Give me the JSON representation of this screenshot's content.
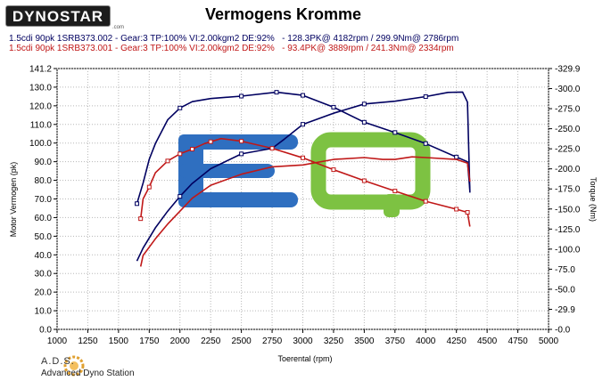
{
  "header": {
    "logo_text": "DYNOSTAR",
    "logo_suffix": ".com",
    "title": "Vermogens Kromme"
  },
  "runs": [
    {
      "text": "1.5cdi 90pk 1SRB373.002 - Gear:3 TP:100% VI:2.00kgm2 DE:92%   - 128.3PK@ 4182rpm / 299.9Nm@ 2786rpm",
      "color": "#000060"
    },
    {
      "text": "1.5cdi 90pk 1SRB373.001 - Gear:3 TP:100% VI:2.00kgm2 DE:92%   - 93.4PK@ 3889rpm / 241.3Nm@ 2334rpm",
      "color": "#c01818"
    }
  ],
  "footer": {
    "name": "A.D.S.",
    "subtitle": "Advanced Dyno Station"
  },
  "watermark": {
    "left_letter": "E",
    "right_letter": "Q",
    "left_color": "#2f6fc0",
    "right_color": "#7dc242"
  },
  "chart_data": {
    "type": "line",
    "title": "Vermogens Kromme",
    "xlabel": "Toerental (rpm)",
    "ylabel": "Motor Vermogen (pk)",
    "y2label": "Torque (Nm)",
    "xlim": [
      1000,
      5000
    ],
    "ylim": [
      0.0,
      141.2
    ],
    "y2lim": [
      0.0,
      329.9
    ],
    "x_ticks": [
      1000,
      1250,
      1500,
      1750,
      2000,
      2250,
      2500,
      2750,
      3000,
      3250,
      3500,
      3750,
      4000,
      4250,
      4500,
      4750,
      5000
    ],
    "y_ticks": [
      "0.0",
      "10.0",
      "20.0",
      "30.0",
      "40.0",
      "50.0",
      "60.0",
      "70.0",
      "80.0",
      "90.0",
      "100.0",
      "110.0",
      "120.0",
      "130.0",
      "141.2"
    ],
    "y2_ticks": [
      "-0.0",
      "-29.9",
      "-50.0",
      "-75.0",
      "-100.0",
      "-125.0",
      "-150.0",
      "-175.0",
      "-200.0",
      "-225.0",
      "-250.0",
      "-275.0",
      "-300.0",
      "-329.9"
    ],
    "grid": true,
    "series": [
      {
        "name": "1.5cdi 90pk 1SRB373.002",
        "kind": "power",
        "axis": "left",
        "color": "#000060",
        "x": [
          1650,
          1700,
          1800,
          1900,
          2000,
          2100,
          2250,
          2500,
          2750,
          2850,
          3000,
          3250,
          3500,
          3750,
          4000,
          4182,
          4300,
          4340,
          4360
        ],
        "y": [
          37,
          44,
          55,
          64,
          72,
          79,
          87,
          95,
          98,
          103,
          111,
          117,
          122,
          123.5,
          126,
          128.3,
          128.5,
          123,
          74
        ],
        "markers_x": [
          2000,
          2500,
          3000,
          3500,
          4000
        ]
      },
      {
        "name": "1.5cdi 90pk 1SRB373.002",
        "kind": "torque",
        "axis": "right",
        "color": "#000060",
        "x": [
          1650,
          1700,
          1750,
          1800,
          1900,
          2000,
          2100,
          2250,
          2500,
          2786,
          3000,
          3250,
          3500,
          3750,
          4000,
          4250,
          4340,
          4360
        ],
        "y": [
          159,
          185,
          215,
          235,
          265,
          280,
          288,
          292,
          295,
          299.9,
          296,
          281,
          262,
          249,
          235,
          218,
          212,
          176
        ],
        "markers_x": [
          1650,
          2000,
          2500,
          2786,
          3000,
          3250,
          3500,
          3750,
          4000,
          4250
        ]
      },
      {
        "name": "1.5cdi 90pk 1SRB373.001",
        "kind": "power",
        "axis": "left",
        "color": "#c01818",
        "x": [
          1680,
          1700,
          1800,
          1900,
          2000,
          2100,
          2250,
          2500,
          2750,
          3000,
          3250,
          3500,
          3650,
          3750,
          3889,
          4000,
          4250,
          4340,
          4360
        ],
        "y": [
          34,
          40,
          49,
          57,
          64,
          71,
          78,
          84,
          88,
          89,
          92,
          93,
          92,
          92,
          93.4,
          93,
          92,
          90,
          80
        ],
        "markers_x": []
      },
      {
        "name": "1.5cdi 90pk 1SRB373.001",
        "kind": "torque",
        "axis": "right",
        "color": "#c01818",
        "x": [
          1680,
          1700,
          1750,
          1800,
          1900,
          2000,
          2100,
          2200,
          2334,
          2500,
          2750,
          3000,
          3250,
          3500,
          3750,
          4000,
          4250,
          4340,
          4360
        ],
        "y": [
          140,
          165,
          180,
          198,
          213,
          222,
          228,
          235,
          241.3,
          238,
          229,
          217,
          202,
          188,
          175,
          162,
          152,
          148,
          130
        ],
        "markers_x": [
          1680,
          1750,
          1900,
          2000,
          2100,
          2250,
          2500,
          2750,
          3000,
          3250,
          3500,
          3750,
          4000,
          4250,
          4340
        ]
      }
    ]
  }
}
